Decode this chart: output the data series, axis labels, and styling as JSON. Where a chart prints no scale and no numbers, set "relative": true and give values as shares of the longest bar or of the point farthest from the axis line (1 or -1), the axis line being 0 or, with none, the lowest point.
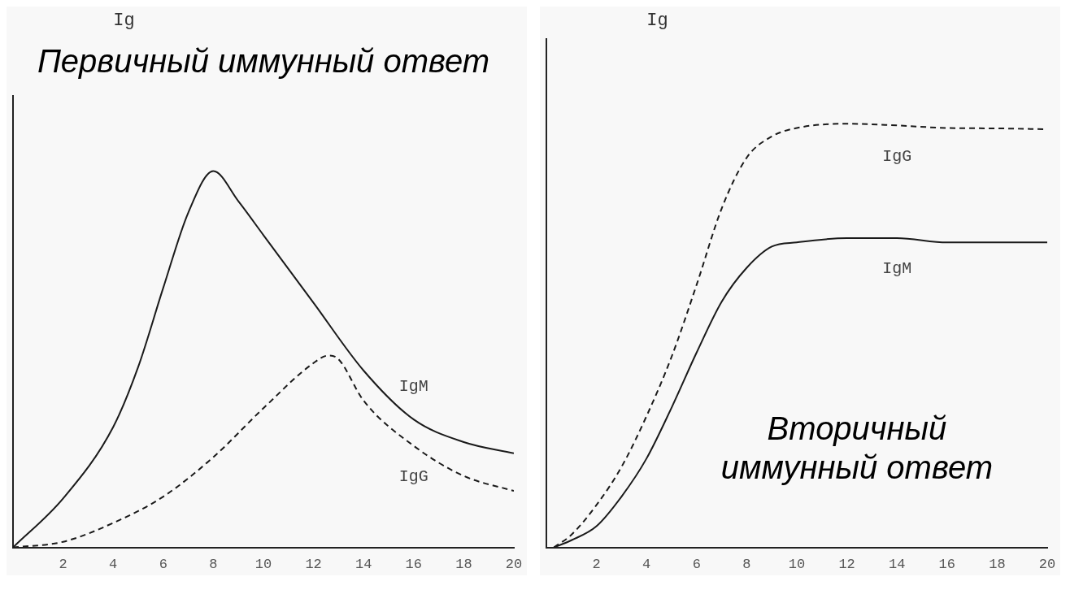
{
  "chart_data": [
    {
      "type": "line",
      "ylabel": "Ig",
      "relative": true,
      "xlim": [
        0,
        20
      ],
      "xticks": [
        2,
        4,
        6,
        8,
        10,
        12,
        14,
        16,
        18,
        20
      ],
      "grid": false,
      "legend": false,
      "marker": "none",
      "annotations": [
        "Первичный иммунный ответ"
      ],
      "series": [
        {
          "name": "IgM",
          "color": "#1a1a1a",
          "line_style": "solid",
          "x": [
            0,
            2,
            4,
            5,
            6,
            7,
            8,
            9,
            10,
            12,
            14,
            16,
            18,
            20
          ],
          "values": [
            0,
            0.13,
            0.32,
            0.48,
            0.69,
            0.89,
            1,
            0.92,
            0.83,
            0.65,
            0.47,
            0.34,
            0.28,
            0.25
          ]
        },
        {
          "name": "IgG",
          "color": "#1a1a1a",
          "line_style": "dashed",
          "x": [
            0,
            2,
            4,
            6,
            8,
            10,
            12,
            12.6,
            13,
            14,
            16,
            18,
            20
          ],
          "values": [
            0,
            0.015,
            0.065,
            0.135,
            0.24,
            0.37,
            0.49,
            0.51,
            0.5,
            0.39,
            0.27,
            0.19,
            0.15
          ]
        }
      ]
    },
    {
      "type": "line",
      "ylabel": "Ig",
      "relative": true,
      "xlim": [
        0,
        20
      ],
      "xticks": [
        2,
        4,
        6,
        8,
        10,
        12,
        14,
        16,
        18,
        20
      ],
      "grid": false,
      "legend": false,
      "marker": "none",
      "annotations": [
        "Вторичный иммунный ответ"
      ],
      "series": [
        {
          "name": "IgG",
          "color": "#1a1a1a",
          "line_style": "dashed",
          "x": [
            0.3,
            1,
            2,
            3,
            4,
            5,
            6,
            7,
            8,
            9,
            10,
            12,
            14,
            16,
            18,
            20
          ],
          "values": [
            0,
            0.03,
            0.1,
            0.19,
            0.31,
            0.45,
            0.62,
            0.8,
            0.92,
            0.97,
            0.99,
            1,
            0.996,
            0.99,
            0.989,
            0.987
          ]
        },
        {
          "name": "IgM",
          "color": "#1a1a1a",
          "line_style": "solid",
          "x": [
            0.3,
            1,
            2,
            3,
            4,
            5,
            6,
            7,
            8,
            9,
            10,
            12,
            14,
            16,
            18,
            20
          ],
          "values": [
            0,
            0.017,
            0.05,
            0.12,
            0.21,
            0.33,
            0.46,
            0.58,
            0.66,
            0.71,
            0.72,
            0.73,
            0.73,
            0.72,
            0.72,
            0.72
          ]
        }
      ]
    }
  ]
}
